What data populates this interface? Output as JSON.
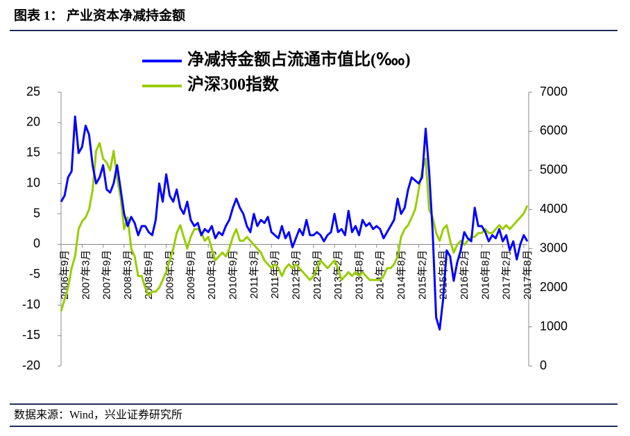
{
  "header": {
    "title": "图表 1：  产业资本净减持金额"
  },
  "source": "数据来源：Wind，兴业证券研究所",
  "chart_data": {
    "type": "line",
    "categories": [
      "2006年9月",
      null,
      null,
      null,
      null,
      null,
      "2007年3月",
      null,
      null,
      null,
      null,
      null,
      "2007年9月",
      null,
      null,
      null,
      null,
      null,
      "2008年3月",
      null,
      null,
      null,
      null,
      null,
      "2008年9月",
      null,
      null,
      null,
      null,
      null,
      "2009年3月",
      null,
      null,
      null,
      null,
      null,
      "2009年9月",
      null,
      null,
      null,
      null,
      null,
      "2010年3月",
      null,
      null,
      null,
      null,
      null,
      "2010年9月",
      null,
      null,
      null,
      null,
      null,
      "2011年3月",
      null,
      null,
      null,
      null,
      null,
      "2011年9月",
      null,
      null,
      null,
      null,
      null,
      "2012年3月",
      null,
      null,
      null,
      null,
      null,
      "2012年8月",
      null,
      null,
      null,
      null,
      null,
      "2013年2月",
      null,
      null,
      null,
      null,
      null,
      "2013年8月",
      null,
      null,
      null,
      null,
      null,
      "2014年2月",
      null,
      null,
      null,
      null,
      null,
      "2014年8月",
      null,
      null,
      null,
      null,
      null,
      "2015年2月",
      null,
      null,
      null,
      null,
      null,
      "2015年8月",
      null,
      null,
      null,
      null,
      null,
      "2016年2月",
      null,
      null,
      null,
      null,
      null,
      "2016年8月",
      null,
      null,
      null,
      null,
      null,
      "2017年2月",
      null,
      null,
      null,
      null,
      null,
      "2017年8月",
      null
    ],
    "series": [
      {
        "name": "净减持金额占流通市值比(‱)",
        "color": "#0000ff",
        "values": [
          7,
          8,
          11,
          12,
          21,
          15,
          16,
          19.5,
          18,
          13,
          10,
          11,
          13,
          9,
          8.5,
          10,
          13,
          9,
          5,
          3,
          4.5,
          3.5,
          1.5,
          3,
          3,
          2,
          1.5,
          4,
          10,
          7,
          11.5,
          8,
          7,
          9,
          6,
          5,
          7,
          4,
          3,
          3.5,
          1.5,
          2.5,
          2,
          3,
          1,
          2,
          1.5,
          3,
          4,
          6,
          7.5,
          6,
          5,
          3,
          2,
          5,
          3,
          4,
          3.5,
          4.5,
          2,
          1.5,
          1,
          3,
          1,
          2,
          -0.5,
          1,
          2.5,
          1.5,
          4,
          1.5,
          1.5,
          2,
          1.5,
          0.5,
          1.5,
          2,
          5,
          2,
          2.5,
          1.5,
          5.5,
          2,
          3,
          1.5,
          4,
          3,
          3.5,
          2.5,
          3,
          2.5,
          1,
          2,
          3,
          4,
          7.5,
          5,
          6,
          9,
          11,
          10.5,
          10,
          11,
          19,
          12,
          2,
          -12,
          -14,
          -9,
          -1,
          -2,
          -6,
          -3,
          -1,
          2,
          1,
          0.5,
          6,
          3,
          3,
          2,
          0.5,
          1.5,
          1,
          2.5,
          0.5,
          1.5,
          -1,
          0.5,
          -2.5,
          0,
          1.5,
          0.5
        ]
      },
      {
        "name": "沪深300指数",
        "color": "#99cc00",
        "axis": "y2",
        "values": [
          1400,
          1700,
          2000,
          2500,
          2800,
          3500,
          3700,
          3800,
          4000,
          4500,
          5500,
          5700,
          5300,
          5200,
          5000,
          5500,
          4800,
          4300,
          3500,
          3800,
          3000,
          2800,
          2300,
          2300,
          2000,
          1800,
          1900,
          1900,
          2000,
          2200,
          2400,
          2700,
          3000,
          3400,
          3600,
          3300,
          3000,
          3300,
          3500,
          3500,
          3400,
          3200,
          3300,
          3000,
          2700,
          2800,
          2900,
          2800,
          3000,
          3300,
          3500,
          3200,
          3200,
          3300,
          3200,
          3100,
          3000,
          2900,
          2700,
          2600,
          2500,
          2600,
          2500,
          2300,
          2500,
          2600,
          2500,
          2600,
          2500,
          2400,
          2300,
          2200,
          2300,
          2500,
          2700,
          2600,
          2500,
          2600,
          2700,
          2500,
          2200,
          2300,
          2400,
          2300,
          2400,
          2300,
          2400,
          2300,
          2200,
          2200,
          2200,
          2200,
          2300,
          2500,
          2500,
          2600,
          2800,
          3300,
          3500,
          3600,
          3800,
          4000,
          4500,
          5000,
          5300,
          4000,
          3800,
          3400,
          3200,
          3500,
          3600,
          3200,
          2900,
          3100,
          3200,
          3100,
          3200,
          3300,
          3300,
          3400,
          3400,
          3500,
          3400,
          3400,
          3500,
          3600,
          3500,
          3600,
          3500,
          3600,
          3700,
          3800,
          3900,
          4100
        ]
      }
    ],
    "ylim": [
      -20,
      25
    ],
    "yticks": [
      -20,
      -15,
      -10,
      -5,
      0,
      5,
      10,
      15,
      20,
      25
    ],
    "y2lim": [
      0,
      7000
    ],
    "y2ticks": [
      0,
      1000,
      2000,
      3000,
      4000,
      5000,
      6000,
      7000
    ],
    "legend": "top"
  }
}
